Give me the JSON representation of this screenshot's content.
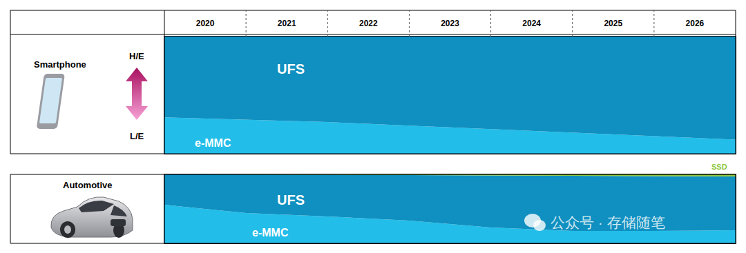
{
  "chart_data": [
    {
      "type": "area",
      "stacked": true,
      "row_label": "Smartphone",
      "high_end_label": "H/E",
      "low_end_label": "L/E",
      "x": [
        2019.5,
        2020.5,
        2021.5,
        2022.5,
        2023.5,
        2024.5,
        2025.5,
        2026.5
      ],
      "xlim": [
        2019.5,
        2026.5
      ],
      "xticks": [
        2020,
        2021,
        2022,
        2023,
        2024,
        2025,
        2026
      ],
      "ylim": [
        0,
        100
      ],
      "tick_labels": "x",
      "grid": false,
      "series": [
        {
          "name": "e-MMC",
          "color": "#22bde9",
          "values": [
            31,
            29,
            27,
            24,
            21,
            18,
            15,
            12
          ]
        },
        {
          "name": "UFS",
          "color": "#0f90c0",
          "values": [
            69,
            71,
            73,
            76,
            79,
            82,
            85,
            88
          ]
        }
      ]
    },
    {
      "type": "area",
      "stacked": true,
      "row_label": "Automotive",
      "x": [
        2019.5,
        2020.5,
        2021.5,
        2022.5,
        2023.5,
        2024.5,
        2025.5,
        2026.5
      ],
      "xlim": [
        2019.5,
        2026.5
      ],
      "ylim": [
        0,
        100
      ],
      "tick_labels": false,
      "grid": false,
      "series": [
        {
          "name": "e-MMC",
          "color": "#22bde9",
          "values": [
            56,
            44,
            39,
            33,
            23,
            18,
            18,
            19
          ]
        },
        {
          "name": "UFS",
          "color": "#0f90c0",
          "values": [
            44,
            56,
            60.5,
            66,
            75.5,
            80,
            79.5,
            78
          ]
        },
        {
          "name": "SSD",
          "color": "#8cc63f",
          "values": [
            0,
            0,
            0.5,
            1,
            1.5,
            2,
            2.5,
            3
          ]
        }
      ]
    }
  ],
  "watermark": "公众号 · 存储随笔"
}
